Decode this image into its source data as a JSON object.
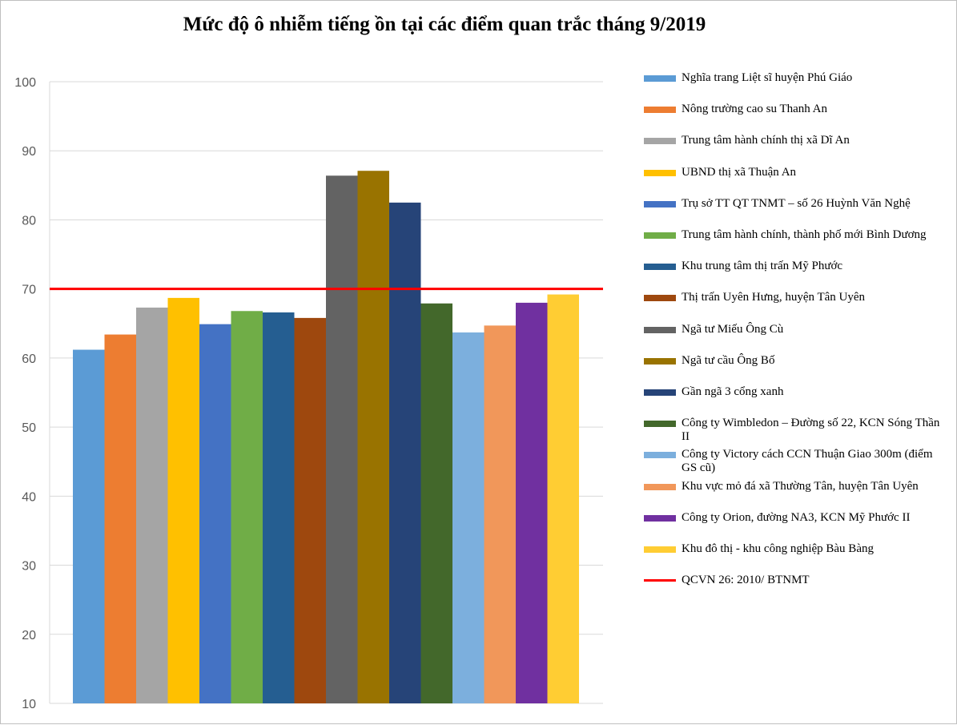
{
  "chart_data": {
    "type": "bar",
    "title": "Mức độ ô nhiễm tiếng ồn tại các điểm quan trắc tháng 9/2019",
    "xlabel": "",
    "ylabel": "",
    "ylim": [
      10,
      100
    ],
    "yticks": [
      "10",
      "20",
      "30",
      "40",
      "50",
      "60",
      "70",
      "80",
      "90",
      "100"
    ],
    "grid": true,
    "legend_position": "right",
    "series": [
      {
        "name": "Nghĩa trang Liệt sĩ huyện Phú Giáo",
        "value": 61.2,
        "color": "#5B9BD5"
      },
      {
        "name": "Nông trường cao su Thanh  An",
        "value": 63.4,
        "color": "#ED7D31"
      },
      {
        "name": "Trung  tâm hành  chính thị xã Dĩ An",
        "value": 67.3,
        "color": "#A5A5A5"
      },
      {
        "name": "UBND thị xã Thuận  An",
        "value": 68.7,
        "color": "#FFC000"
      },
      {
        "name": "Trụ sở TT  QT  TNMT  – số 26 Huỳnh  Văn  Nghệ",
        "value": 64.9,
        "color": "#4472C4"
      },
      {
        "name": "Trung  tâm hành  chính,  thành phố mới Bình Dương",
        "value": 66.8,
        "color": "#70AD47"
      },
      {
        "name": "Khu trung tâm thị trấn Mỹ Phước",
        "value": 66.6,
        "color": "#255E91"
      },
      {
        "name": "Thị trấn Uyên Hưng,  huyện Tân Uyên",
        "value": 65.8,
        "color": "#9E480E"
      },
      {
        "name": "Ngã tư Miếu Ông Cù",
        "value": 86.4,
        "color": "#636363"
      },
      {
        "name": "Ngã tư cầu Ông Bố",
        "value": 87.1,
        "color": "#997300"
      },
      {
        "name": "Gần ngã 3 cổng xanh",
        "value": 82.5,
        "color": "#264478"
      },
      {
        "name": "Công ty Wimbledon – Đường số 22,  KCN Sóng Thần II",
        "value": 67.9,
        "color": "#43682B"
      },
      {
        "name": "Công ty Victory cách CCN Thuận  Giao 300m (điểm GS cũ)",
        "value": 63.7,
        "color": "#7CAFDD"
      },
      {
        "name": "Khu vực mỏ đá xã Thường Tân,  huyện Tân Uyên",
        "value": 64.7,
        "color": "#F1975A"
      },
      {
        "name": "Công ty Orion, đường NA3, KCN Mỹ Phước II",
        "value": 68.0,
        "color": "#7030A0"
      },
      {
        "name": "Khu đô thị - khu công nghiệp Bàu Bàng",
        "value": 69.2,
        "color": "#FFCD33"
      }
    ],
    "reference_line": {
      "name": "QCVN 26: 2010/ BTNMT",
      "value": 70,
      "color": "#FF0000"
    }
  }
}
